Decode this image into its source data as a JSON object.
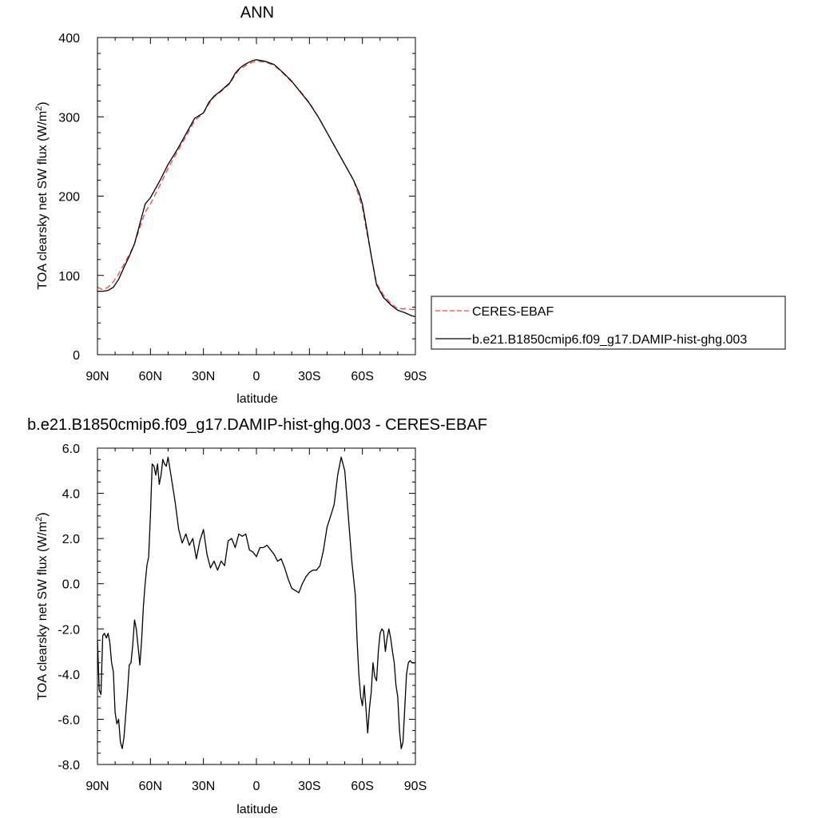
{
  "chart_data": [
    {
      "type": "line",
      "title": "ANN",
      "xlabel": "latitude",
      "ylabel": "TOA clearsky net SW flux (W/m",
      "ylabel_sup": "2",
      "ylabel_end": ")",
      "xlim": [
        90,
        -90
      ],
      "ylim": [
        0,
        400
      ],
      "x_ticks": [
        90,
        60,
        30,
        0,
        -30,
        -60,
        -90
      ],
      "x_tick_labels": [
        "90N",
        "60N",
        "30N",
        "0",
        "30S",
        "60S",
        "90S"
      ],
      "y_ticks": [
        0,
        100,
        200,
        300,
        400
      ],
      "y_tick_labels": [
        "0",
        "100",
        "200",
        "300",
        "400"
      ],
      "legend_position": "outside-right",
      "series": [
        {
          "name": "CERES-EBAF",
          "color": "#ff4040",
          "dash": "dashed",
          "x": [
            90,
            87,
            84,
            81,
            78,
            75,
            72,
            69,
            66,
            63,
            60,
            55,
            50,
            45,
            40,
            35,
            30,
            27,
            24,
            20,
            15,
            12,
            10,
            8,
            5,
            2,
            0,
            -5,
            -10,
            -15,
            -20,
            -25,
            -30,
            -35,
            -40,
            -45,
            -50,
            -55,
            -58,
            -60,
            -62,
            -65,
            -68,
            -72,
            -76,
            -80,
            -84,
            -88,
            -90
          ],
          "y": [
            85,
            82,
            85,
            92,
            102,
            114,
            126,
            140,
            160,
            180,
            190,
            212,
            235,
            255,
            275,
            295,
            305,
            316,
            325,
            332,
            342,
            353,
            359,
            362,
            366,
            369,
            370,
            369,
            365,
            355,
            344,
            332,
            318,
            300,
            280,
            260,
            240,
            220,
            200,
            185,
            160,
            125,
            90,
            75,
            65,
            58,
            58,
            57,
            57
          ]
        },
        {
          "name": "b.e21.B1850cmip6.f09_g17.DAMIP-hist-ghg.003",
          "color": "#000000",
          "dash": "solid",
          "x": [
            90,
            87,
            84,
            81,
            78,
            75,
            72,
            69,
            66,
            63,
            60,
            55,
            50,
            45,
            40,
            35,
            30,
            27,
            24,
            20,
            15,
            12,
            10,
            8,
            5,
            2,
            0,
            -5,
            -10,
            -15,
            -20,
            -25,
            -30,
            -35,
            -40,
            -45,
            -50,
            -55,
            -58,
            -60,
            -62,
            -65,
            -68,
            -72,
            -76,
            -80,
            -84,
            -88,
            -90
          ],
          "y": [
            80,
            80,
            81,
            85,
            95,
            110,
            124,
            140,
            165,
            190,
            198,
            218,
            240,
            258,
            278,
            298,
            305,
            318,
            326,
            333,
            343,
            355,
            360,
            364,
            368,
            371,
            372,
            370,
            366,
            356,
            345,
            331,
            317,
            300,
            280,
            260,
            240,
            220,
            205,
            190,
            165,
            125,
            88,
            72,
            63,
            56,
            53,
            49,
            48
          ]
        }
      ]
    },
    {
      "type": "line",
      "title": "b.e21.B1850cmip6.f09_g17.DAMIP-hist-ghg.003 - CERES-EBAF",
      "xlabel": "latitude",
      "ylabel": "TOA clearsky net SW flux (W/m",
      "ylabel_sup": "2",
      "ylabel_end": ")",
      "xlim": [
        90,
        -90
      ],
      "ylim": [
        -8,
        6
      ],
      "x_ticks": [
        90,
        60,
        30,
        0,
        -30,
        -60,
        -90
      ],
      "x_tick_labels": [
        "90N",
        "60N",
        "30N",
        "0",
        "30S",
        "60S",
        "90S"
      ],
      "y_ticks": [
        -8,
        -6,
        -4,
        -2,
        0,
        2,
        4,
        6
      ],
      "y_tick_labels": [
        "-8.0",
        "-6.0",
        "-4.0",
        "-2.0",
        "0.0",
        "2.0",
        "4.0",
        "6.0"
      ],
      "series": [
        {
          "color": "#000000",
          "dash": "solid",
          "x": [
            90,
            89,
            88,
            87,
            86,
            85,
            84,
            83,
            82,
            81,
            80,
            79,
            78,
            77,
            76,
            75,
            74,
            73,
            72,
            71,
            70,
            69,
            68,
            67,
            66,
            65,
            64,
            63,
            62,
            61,
            60,
            59,
            58,
            57,
            56,
            55,
            54,
            53,
            52,
            51,
            50,
            48,
            46,
            44,
            42,
            40,
            38,
            36,
            34,
            32,
            30,
            28,
            26,
            24,
            22,
            20,
            18,
            16,
            14,
            12,
            10,
            8,
            6,
            4,
            2,
            0,
            -2,
            -4,
            -6,
            -8,
            -10,
            -12,
            -14,
            -16,
            -18,
            -20,
            -22,
            -24,
            -26,
            -28,
            -30,
            -32,
            -34,
            -36,
            -38,
            -40,
            -42,
            -44,
            -46,
            -48,
            -50,
            -52,
            -54,
            -56,
            -57,
            -58,
            -59,
            -60,
            -61,
            -62,
            -63,
            -64,
            -65,
            -66,
            -67,
            -68,
            -69,
            -70,
            -71,
            -72,
            -73,
            -74,
            -75,
            -76,
            -77,
            -78,
            -79,
            -80,
            -81,
            -82,
            -83,
            -84,
            -85,
            -86,
            -87,
            -88,
            -89,
            -90
          ],
          "y": [
            -2.5,
            -4.7,
            -4.9,
            -2.3,
            -2.2,
            -2.4,
            -2.2,
            -2.6,
            -3.5,
            -3.9,
            -5.7,
            -6.2,
            -6.0,
            -7.0,
            -7.3,
            -6.8,
            -5.8,
            -4.8,
            -3.6,
            -3.5,
            -2.7,
            -1.6,
            -2.0,
            -2.8,
            -3.6,
            -2.5,
            -1.0,
            0.0,
            0.8,
            1.2,
            3.0,
            5.3,
            5.2,
            4.8,
            5.3,
            4.4,
            4.8,
            5.5,
            5.3,
            5.2,
            5.6,
            4.6,
            3.6,
            2.4,
            1.8,
            2.2,
            1.7,
            2.0,
            1.1,
            1.9,
            2.4,
            1.3,
            0.7,
            1.0,
            0.6,
            1.0,
            0.8,
            1.9,
            2.0,
            1.6,
            2.2,
            2.1,
            2.2,
            1.5,
            1.4,
            1.2,
            1.6,
            1.6,
            1.7,
            1.5,
            1.3,
            1.0,
            1.1,
            0.7,
            0.2,
            -0.2,
            -0.3,
            -0.4,
            0.0,
            0.3,
            0.5,
            0.6,
            0.6,
            0.8,
            1.5,
            2.5,
            3.0,
            3.5,
            4.8,
            5.6,
            5.0,
            3.0,
            1.0,
            -0.5,
            -2.5,
            -4.0,
            -5.0,
            -5.4,
            -4.5,
            -5.5,
            -6.6,
            -5.5,
            -4.8,
            -3.5,
            -4.1,
            -4.3,
            -3.0,
            -2.2,
            -2.0,
            -2.1,
            -3.0,
            -2.4,
            -2.0,
            -2.4,
            -3.0,
            -3.5,
            -4.5,
            -5.0,
            -6.5,
            -7.3,
            -7.0,
            -5.5,
            -4.0,
            -3.5,
            -3.4,
            -3.5,
            -3.5,
            -3.5
          ]
        }
      ]
    }
  ]
}
